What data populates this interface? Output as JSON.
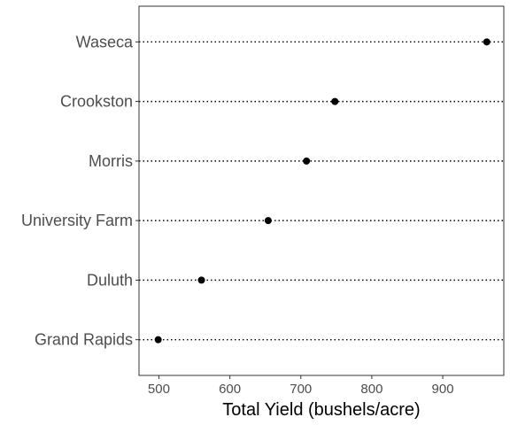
{
  "chart_data": {
    "type": "scatter",
    "title": "",
    "xlabel": "Total Yield (bushels/acre)",
    "ylabel": "",
    "xlim": [
      472,
      986
    ],
    "x_ticks": [
      500,
      600,
      700,
      800,
      900
    ],
    "categories": [
      "Grand Rapids",
      "Duluth",
      "University Farm",
      "Morris",
      "Crookston",
      "Waseca"
    ],
    "values": [
      499,
      560,
      654,
      708,
      748,
      962
    ],
    "grid": "dotted horizontal reference lines per category",
    "legend": "none",
    "colors": {
      "point": "#000000",
      "reference_line": "#000000",
      "panel_border": "#333333",
      "tick_text": "#4d4d4d"
    }
  }
}
